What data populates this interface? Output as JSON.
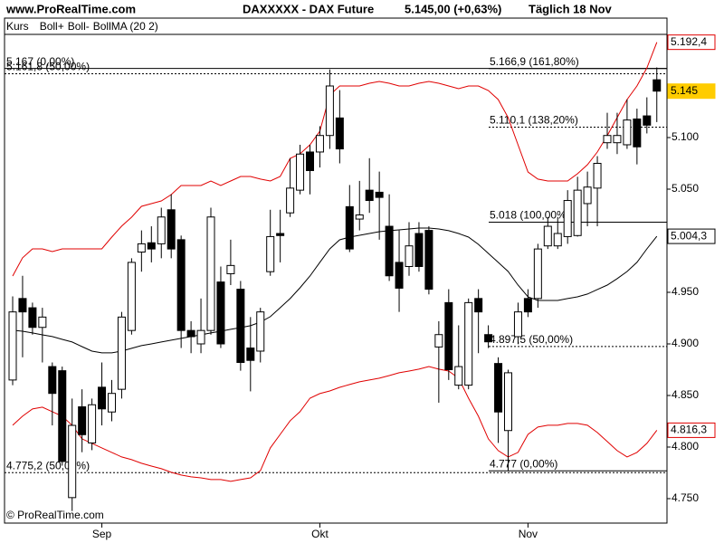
{
  "header": {
    "site": "www.ProRealTime.com",
    "instrument": "DAXXXXX - DAX Future",
    "quote": "5.145,00 (+0,63%)",
    "period": "Täglich 18 Nov"
  },
  "watermark": "© ProRealTime.com",
  "chart_data": {
    "type": "candlestick",
    "name": "Kurs",
    "color_up": "#ffffff",
    "color_down": "#000000",
    "label_color": "#ffcc00",
    "categories": [
      null,
      null,
      null,
      null,
      null,
      null,
      null,
      null,
      null,
      "Sep",
      null,
      null,
      null,
      null,
      null,
      null,
      null,
      null,
      null,
      null,
      null,
      null,
      null,
      null,
      null,
      null,
      null,
      null,
      null,
      null,
      null,
      "Okt",
      null,
      null,
      null,
      null,
      null,
      null,
      null,
      null,
      null,
      null,
      null,
      null,
      null,
      null,
      null,
      null,
      null,
      null,
      null,
      null,
      "Nov",
      null,
      null,
      null,
      null,
      null,
      null,
      null,
      null,
      null,
      null,
      null,
      null,
      null
    ],
    "open": [
      4865,
      4944,
      4935,
      4916,
      4878,
      4874,
      4751,
      4839,
      4804,
      4858,
      4834,
      4856,
      4913,
      4989,
      4998,
      4997,
      5030,
      5001,
      4913,
      4900,
      4913,
      4960,
      4968,
      4953,
      4896,
      4893,
      4970,
      5007,
      5027,
      5049,
      5086,
      5086,
      5102,
      5119,
      5033,
      5021,
      5049,
      5047,
      5014,
      4979,
      4975,
      5007,
      5010,
      4897,
      4940,
      4860,
      4860,
      4944,
      4909,
      4881,
      4816,
      4907,
      4944,
      4944,
      4995,
      4995,
      5004,
      5005,
      5036,
      5051,
      5095,
      5095,
      5093,
      5118,
      5121,
      5156
    ],
    "high": [
      4946,
      4966,
      4940,
      4935,
      4882,
      4878,
      4847,
      4856,
      4847,
      4882,
      4865,
      4931,
      4983,
      5010,
      5014,
      5032,
      5045,
      5005,
      4922,
      4944,
      5032,
      4975,
      5001,
      4961,
      4926,
      4935,
      5030,
      5030,
      5080,
      5093,
      5093,
      5111,
      5166,
      5146,
      5054,
      5058,
      5080,
      5067,
      5045,
      5010,
      5018,
      5018,
      5014,
      4922,
      4953,
      4918,
      4944,
      4953,
      4918,
      4887,
      4875,
      4940,
      4953,
      4997,
      5023,
      5023,
      5049,
      5062,
      5067,
      5082,
      5124,
      5124,
      5137,
      5128,
      5139,
      5168
    ],
    "low": [
      4860,
      4887,
      4909,
      4882,
      4821,
      4782,
      4738,
      4795,
      4797,
      4821,
      4825,
      4847,
      4909,
      4970,
      4979,
      4983,
      4983,
      4896,
      4891,
      4891,
      4909,
      4896,
      4957,
      4874,
      4854,
      4882,
      4966,
      4979,
      5023,
      5045,
      5045,
      5071,
      5089,
      5075,
      4989,
      5010,
      5027,
      5001,
      4961,
      4931,
      4966,
      4970,
      4948,
      4843,
      4865,
      4856,
      4856,
      4891,
      4896,
      4804,
      4777,
      4900,
      4926,
      4935,
      4992,
      4992,
      4997,
      5004,
      5014,
      5014,
      5089,
      5084,
      5089,
      5074,
      5104,
      5115
    ],
    "close": [
      4931,
      4931,
      4916,
      4926,
      4852,
      4786,
      4821,
      4812,
      4841,
      4837,
      4852,
      4926,
      4979,
      4997,
      4992,
      5023,
      4992,
      4913,
      4907,
      4913,
      5023,
      4900,
      4976,
      4882,
      4884,
      4931,
      5004,
      5005,
      5051,
      5084,
      5068,
      5102,
      5150,
      5089,
      4992,
      5025,
      5039,
      5042,
      4966,
      4954,
      4995,
      4975,
      4953,
      4909,
      4875,
      4878,
      4940,
      4931,
      4902,
      4834,
      4872,
      4931,
      4931,
      4992,
      5014,
      5007,
      5039,
      5049,
      5052,
      5075,
      5102,
      5102,
      5117,
      5091,
      5112,
      5145
    ],
    "value_labels": [
      null,
      null,
      null,
      null,
      null,
      null,
      null,
      null,
      null,
      null,
      null,
      null,
      null,
      null,
      null,
      null,
      null,
      null,
      null,
      null,
      null,
      null,
      null,
      null,
      null,
      null,
      null,
      null,
      null,
      null,
      null,
      null,
      null,
      null,
      null,
      null,
      null,
      null,
      null,
      null,
      null,
      null,
      null,
      null,
      null,
      null,
      null,
      null,
      null,
      null,
      null,
      null,
      null,
      null,
      null,
      null,
      null,
      null,
      null,
      null,
      null,
      null,
      null,
      null,
      null,
      "5.145"
    ],
    "ylim": [
      4726.3,
      5200
    ],
    "yticks": [
      {
        "value": 4750,
        "label": "4.750"
      },
      {
        "value": 4800,
        "label": "4.800"
      },
      {
        "value": 4850,
        "label": "4.850"
      },
      {
        "value": 4900,
        "label": "4.900"
      },
      {
        "value": 4950,
        "label": "4.950"
      },
      {
        "value": 5050,
        "label": "5.050"
      },
      {
        "value": 5100,
        "label": "5.100"
      }
    ],
    "overlays": [
      {
        "type": "line",
        "name": "Boll+",
        "color": "#e00000",
        "values": [
          4965.8,
          4983.4,
          4992.1,
          4992.1,
          4989.5,
          4992.1,
          4992.1,
          4992.1,
          4992.1,
          4992.1,
          5003.5,
          5014.1,
          5022.8,
          5033.3,
          5036,
          5038.6,
          5044.7,
          5053.5,
          5053.5,
          5053.5,
          5057.9,
          5053.5,
          5057.9,
          5062.3,
          5062.3,
          5059.7,
          5057.9,
          5062.3,
          5079.8,
          5084.2,
          5093,
          5106.1,
          5141.2,
          5150,
          5150,
          5150,
          5152.6,
          5154.4,
          5152.6,
          5150,
          5150,
          5152.6,
          5154.4,
          5152.6,
          5150,
          5147.4,
          5150,
          5150,
          5145.6,
          5136.8,
          5119.3,
          5093,
          5066.7,
          5059.7,
          5057.9,
          5057.9,
          5057.9,
          5064.9,
          5073.7,
          5086,
          5101.8,
          5119.3,
          5136.8,
          5150,
          5167.5,
          5192.4
        ],
        "value_labels": [
          null,
          null,
          null,
          null,
          null,
          null,
          null,
          null,
          null,
          null,
          null,
          null,
          null,
          null,
          null,
          null,
          null,
          null,
          null,
          null,
          null,
          null,
          null,
          null,
          null,
          null,
          null,
          null,
          null,
          null,
          null,
          null,
          null,
          null,
          null,
          null,
          null,
          null,
          null,
          null,
          null,
          null,
          null,
          null,
          null,
          null,
          null,
          null,
          null,
          null,
          null,
          null,
          null,
          null,
          null,
          null,
          null,
          null,
          null,
          null,
          null,
          null,
          null,
          null,
          null,
          "5.192,4"
        ]
      },
      {
        "type": "line",
        "name": "Boll-",
        "color": "#e00000",
        "values": [
          4821.1,
          4829.9,
          4836.9,
          4838.7,
          4834.3,
          4829.9,
          4821.1,
          4808,
          4803.6,
          4799.2,
          4794.8,
          4790.4,
          4787.8,
          4784.3,
          4781.6,
          4779,
          4775.5,
          4772.9,
          4771.1,
          4770.2,
          4768.5,
          4768.5,
          4766.7,
          4768.5,
          4770.2,
          4777.3,
          4799.2,
          4812.3,
          4825.5,
          4834.3,
          4847.4,
          4851.8,
          4854.4,
          4857.9,
          4860.6,
          4863.2,
          4865,
          4866.7,
          4869.3,
          4872,
          4873.7,
          4875.5,
          4878.1,
          4875.5,
          4873.7,
          4866.7,
          4847.4,
          4829.9,
          4808,
          4796.6,
          4790.4,
          4794.8,
          4812.3,
          4819.4,
          4821.1,
          4821.1,
          4822.9,
          4822.9,
          4821.1,
          4814.1,
          4805.3,
          4796.6,
          4790.4,
          4794.8,
          4803.6,
          4816.3
        ],
        "value_labels": [
          null,
          null,
          null,
          null,
          null,
          null,
          null,
          null,
          null,
          null,
          null,
          null,
          null,
          null,
          null,
          null,
          null,
          null,
          null,
          null,
          null,
          null,
          null,
          null,
          null,
          null,
          null,
          null,
          null,
          null,
          null,
          null,
          null,
          null,
          null,
          null,
          null,
          null,
          null,
          null,
          null,
          null,
          null,
          null,
          null,
          null,
          null,
          null,
          null,
          null,
          null,
          null,
          null,
          null,
          null,
          null,
          null,
          null,
          null,
          null,
          null,
          null,
          null,
          null,
          null,
          "4.816,3"
        ]
      },
      {
        "type": "line",
        "name": "BollMA (20 2)",
        "color": "#000000",
        "values": [
          4913.2,
          4912.3,
          4910.6,
          4908.8,
          4907.1,
          4904.4,
          4901.8,
          4897.4,
          4893,
          4891.3,
          4891.3,
          4893,
          4895.7,
          4898.3,
          4900,
          4901.8,
          4903.6,
          4905.3,
          4907.1,
          4908.8,
          4910.6,
          4912.3,
          4914.1,
          4915.8,
          4917.6,
          4921.1,
          4926.4,
          4935.1,
          4943.9,
          4954.4,
          4965.8,
          4979,
          4992.1,
          5000.9,
          5003.5,
          5005.3,
          5007,
          5008.8,
          5009.7,
          5010.5,
          5011.4,
          5012.3,
          5012.3,
          5011.4,
          5009.7,
          5007,
          5003.5,
          4996.5,
          4987.7,
          4979,
          4970.2,
          4957,
          4945.6,
          4942.1,
          4942.1,
          4942.1,
          4943.9,
          4945.6,
          4948.3,
          4952.7,
          4957,
          4963.2,
          4970.2,
          4979,
          4992.1,
          5004.3
        ],
        "value_labels": [
          null,
          null,
          null,
          null,
          null,
          null,
          null,
          null,
          null,
          null,
          null,
          null,
          null,
          null,
          null,
          null,
          null,
          null,
          null,
          null,
          null,
          null,
          null,
          null,
          null,
          null,
          null,
          null,
          null,
          null,
          null,
          null,
          null,
          null,
          null,
          null,
          null,
          null,
          null,
          null,
          null,
          null,
          null,
          null,
          null,
          null,
          null,
          null,
          null,
          null,
          null,
          null,
          null,
          null,
          null,
          null,
          null,
          null,
          null,
          null,
          null,
          null,
          null,
          null,
          null,
          "5.004,3"
        ]
      }
    ],
    "fib_left": [
      {
        "value": 5167,
        "label": "5.167 (0,00%)",
        "dashed": false
      },
      {
        "value": 5161.8,
        "label": "5.161,8 (50,00%)",
        "dashed": true
      },
      {
        "value": 4775.2,
        "label": "4.775,2 (50,00%)",
        "dashed": true
      }
    ],
    "fib_right": [
      {
        "value": 5166.9,
        "label": "5.166,9 (161,80%)",
        "dashed": false
      },
      {
        "value": 5110.1,
        "label": "5.110,1 (138,20%)",
        "dashed": true
      },
      {
        "value": 5018,
        "label": "5.018 (100,00%)",
        "dashed": false
      },
      {
        "value": 4897.5,
        "label": "4.897,5 (50,00%)",
        "dashed": true
      },
      {
        "value": 4777,
        "label": "4.777 (0,00%)",
        "dashed": false
      }
    ]
  }
}
